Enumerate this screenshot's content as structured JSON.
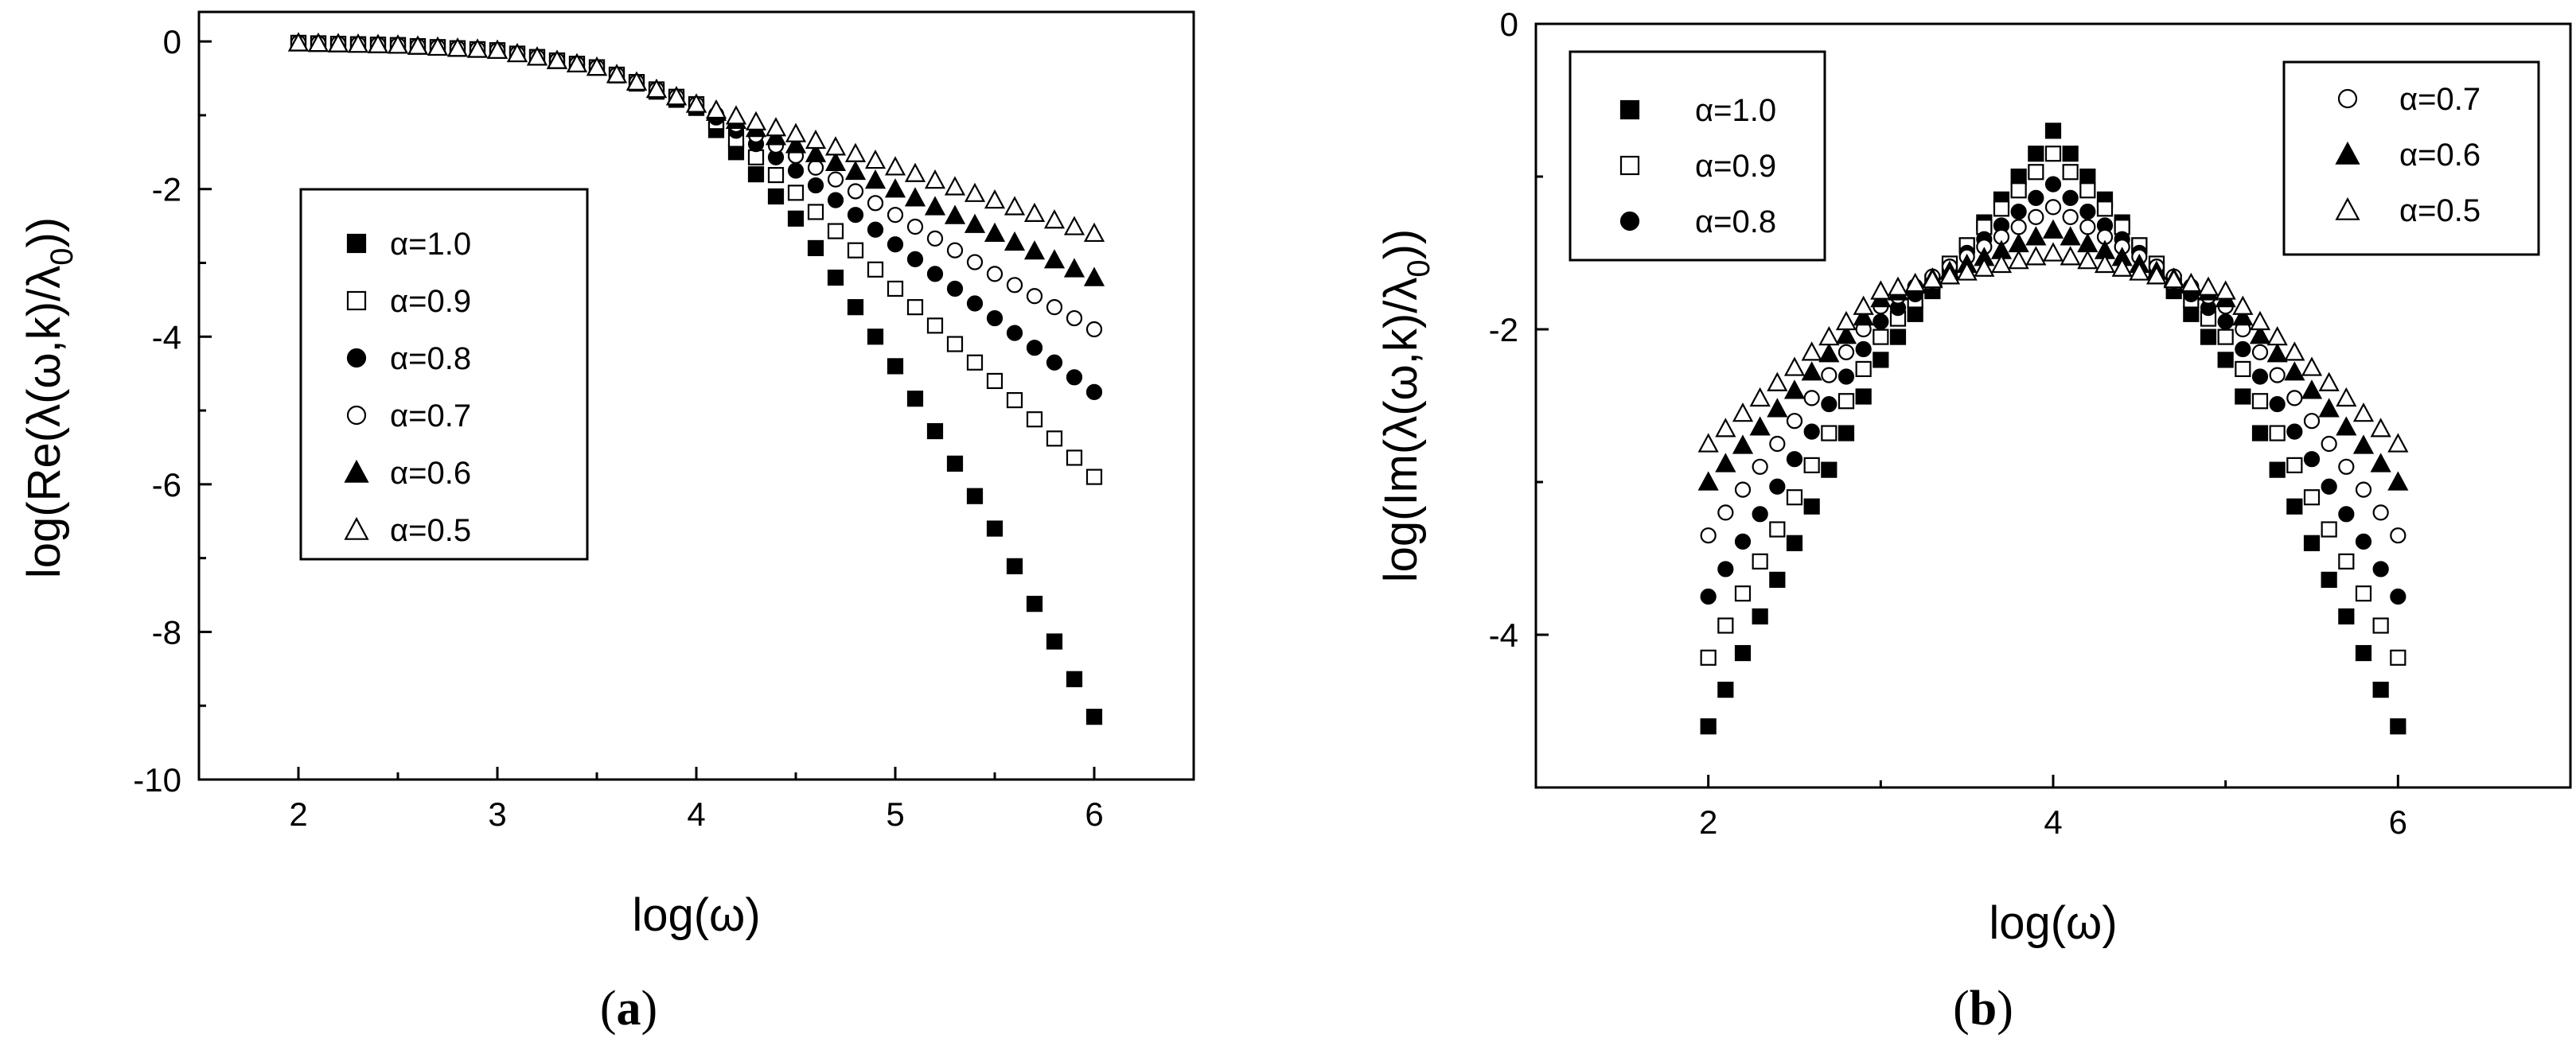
{
  "chart_data": [
    {
      "type": "scatter",
      "panel_label": "(a)",
      "panel_letter": "a",
      "xlabel": "log(ω)",
      "ylabel": "log(Re(λ(ω,k)/λ0))",
      "ylabel_main": "log(Re(λ(ω,k)/λ",
      "ylabel_sub": "0",
      "ylabel_tail": "))",
      "xlim": [
        1.5,
        6.5
      ],
      "ylim": [
        -10,
        0.4
      ],
      "xticks": [
        2,
        3,
        4,
        5,
        6
      ],
      "yticks": [
        0,
        -2,
        -4,
        -6,
        -8,
        -10
      ],
      "grid": false,
      "legend_placement": "center-left",
      "series": [
        {
          "name": "α=1.0",
          "marker": "square-filled",
          "x": [
            2.0,
            2.5,
            3.0,
            3.5,
            4.0,
            4.5,
            5.0,
            5.5,
            6.0
          ],
          "values": [
            -0.02,
            -0.05,
            -0.12,
            -0.35,
            -0.9,
            -2.4,
            -4.4,
            -6.6,
            -9.15
          ]
        },
        {
          "name": "α=0.9",
          "marker": "square-open",
          "x": [
            2.0,
            2.5,
            3.0,
            3.5,
            4.0,
            4.5,
            5.0,
            5.5,
            6.0
          ],
          "values": [
            -0.02,
            -0.05,
            -0.12,
            -0.35,
            -0.85,
            -2.05,
            -3.35,
            -4.6,
            -5.9
          ]
        },
        {
          "name": "α=0.8",
          "marker": "circle-filled",
          "x": [
            2.0,
            2.5,
            3.0,
            3.5,
            4.0,
            4.5,
            5.0,
            5.5,
            6.0
          ],
          "values": [
            -0.02,
            -0.05,
            -0.12,
            -0.35,
            -0.85,
            -1.75,
            -2.75,
            -3.75,
            -4.75
          ]
        },
        {
          "name": "α=0.7",
          "marker": "circle-open",
          "x": [
            2.0,
            2.5,
            3.0,
            3.5,
            4.0,
            4.5,
            5.0,
            5.5,
            6.0
          ],
          "values": [
            -0.02,
            -0.05,
            -0.12,
            -0.35,
            -0.85,
            -1.55,
            -2.35,
            -3.15,
            -3.9
          ]
        },
        {
          "name": "α=0.6",
          "marker": "triangle-filled",
          "x": [
            2.0,
            2.5,
            3.0,
            3.5,
            4.0,
            4.5,
            5.0,
            5.5,
            6.0
          ],
          "values": [
            -0.02,
            -0.05,
            -0.12,
            -0.35,
            -0.85,
            -1.4,
            -2.0,
            -2.6,
            -3.2
          ]
        },
        {
          "name": "α=0.5",
          "marker": "triangle-open",
          "x": [
            2.0,
            2.5,
            3.0,
            3.5,
            4.0,
            4.5,
            5.0,
            5.5,
            6.0
          ],
          "values": [
            -0.02,
            -0.05,
            -0.12,
            -0.35,
            -0.85,
            -1.25,
            -1.7,
            -2.15,
            -2.6
          ]
        }
      ]
    },
    {
      "type": "scatter",
      "panel_label": "(b)",
      "panel_letter": "b",
      "xlabel": "log(ω)",
      "ylabel": "log(Im(λ(ω,k)/λ0))",
      "ylabel_main": "log(Im(λ(ω,k)/λ",
      "ylabel_sub": "0",
      "ylabel_tail": "))",
      "xlim": [
        1,
        7
      ],
      "ylim": [
        -5,
        0
      ],
      "xticks": [
        2,
        4,
        6
      ],
      "yticks": [
        0,
        -2,
        -4
      ],
      "grid": false,
      "legend_placement": "top-left and top-right",
      "legend_left": [
        "α=1.0",
        "α=0.9",
        "α=0.8"
      ],
      "legend_right": [
        "α=0.7",
        "α=0.6",
        "α=0.5"
      ],
      "series": [
        {
          "name": "α=1.0",
          "marker": "square-filled",
          "x": [
            2.0,
            3.0,
            4.0,
            5.0,
            6.0
          ],
          "values": [
            -4.6,
            -2.2,
            -0.7,
            -2.2,
            -4.6
          ]
        },
        {
          "name": "α=0.9",
          "marker": "square-open",
          "x": [
            2.0,
            3.0,
            4.0,
            5.0,
            6.0
          ],
          "values": [
            -4.15,
            -2.05,
            -0.85,
            -2.05,
            -4.15
          ]
        },
        {
          "name": "α=0.8",
          "marker": "circle-filled",
          "x": [
            2.0,
            3.0,
            4.0,
            5.0,
            6.0
          ],
          "values": [
            -3.75,
            -1.95,
            -1.05,
            -1.95,
            -3.75
          ]
        },
        {
          "name": "α=0.7",
          "marker": "circle-open",
          "x": [
            2.0,
            3.0,
            4.0,
            5.0,
            6.0
          ],
          "values": [
            -3.35,
            -1.85,
            -1.2,
            -1.85,
            -3.35
          ]
        },
        {
          "name": "α=0.6",
          "marker": "triangle-filled",
          "x": [
            2.0,
            3.0,
            4.0,
            5.0,
            6.0
          ],
          "values": [
            -3.0,
            -1.8,
            -1.35,
            -1.8,
            -3.0
          ]
        },
        {
          "name": "α=0.5",
          "marker": "triangle-open",
          "x": [
            2.0,
            3.0,
            4.0,
            5.0,
            6.0
          ],
          "values": [
            -2.75,
            -1.75,
            -1.5,
            -1.75,
            -2.75
          ]
        }
      ]
    }
  ]
}
